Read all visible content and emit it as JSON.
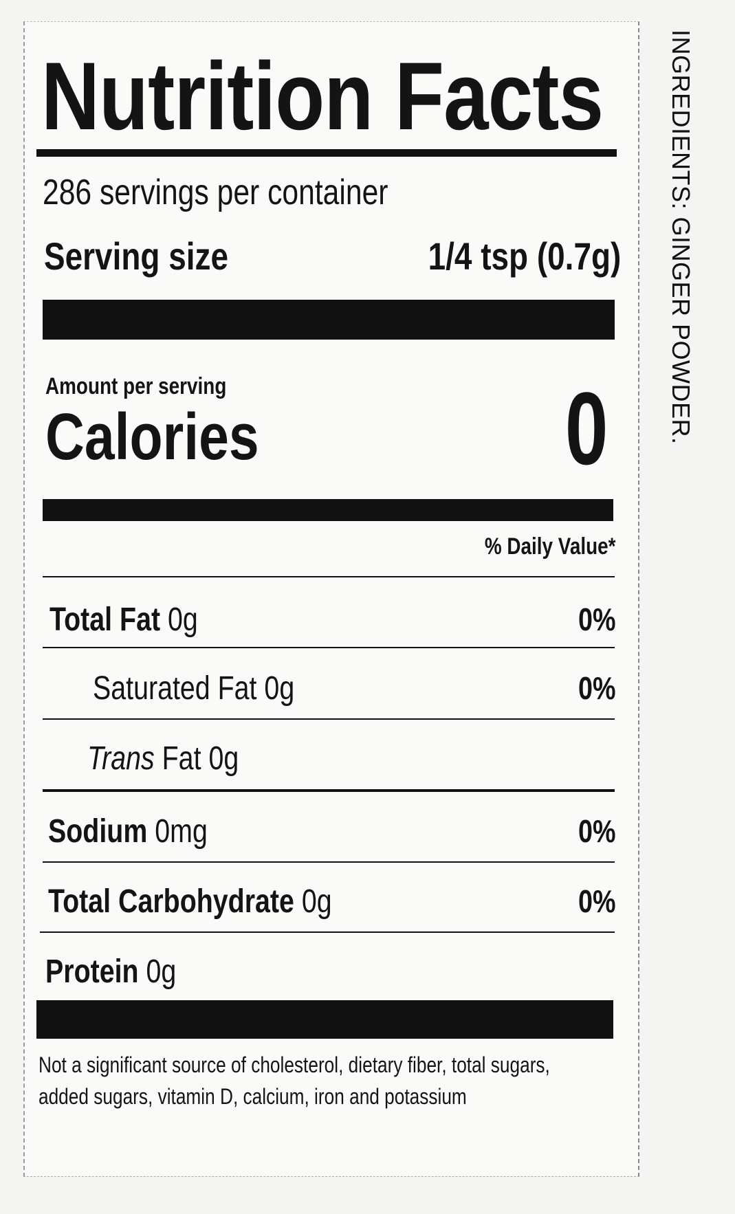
{
  "label": {
    "title": "Nutrition Facts",
    "servings_per_container": "286 servings per container",
    "serving_size_label": "Serving size",
    "serving_size_value": "1/4 tsp (0.7g)",
    "amount_per_serving": "Amount per serving",
    "calories_label": "Calories",
    "calories_value": "0",
    "daily_value_header": "% Daily Value*",
    "nutrients": [
      {
        "name": "Total Fat",
        "amount": "0g",
        "dv": "0%"
      },
      {
        "name": "Saturated Fat",
        "amount": "0g",
        "dv": "0%"
      },
      {
        "name": "Trans",
        "name_suffix": "Fat",
        "amount": "0g"
      },
      {
        "name": "Sodium",
        "amount": "0mg",
        "dv": "0%"
      },
      {
        "name": "Total Carbohydrate",
        "amount": "0g",
        "dv": "0%"
      },
      {
        "name": "Protein",
        "amount": "0g"
      }
    ],
    "footnote": "Not a significant source of cholesterol, dietary fiber, total sugars, added sugars, vitamin D, calcium, iron and potassium"
  },
  "ingredients": "INGREDIENTS: GINGER POWDER."
}
